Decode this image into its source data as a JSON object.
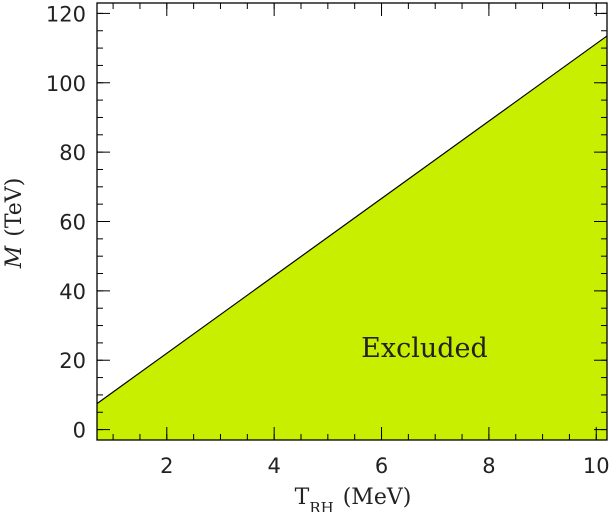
{
  "chart_data": {
    "type": "area",
    "title": "",
    "xlabel": {
      "main": "T",
      "subscript": "RH",
      "unit": "(MeV)"
    },
    "ylabel": {
      "main": "M",
      "unit": "(TeV)"
    },
    "xlim": [
      0.7,
      10.2
    ],
    "ylim": [
      -3,
      123
    ],
    "x_ticks": [
      2,
      4,
      6,
      8,
      10
    ],
    "y_ticks": [
      0,
      20,
      40,
      60,
      80,
      100,
      120
    ],
    "x_tick_labels": [
      "2",
      "4",
      "6",
      "8",
      "10"
    ],
    "y_tick_labels": [
      "0",
      "20",
      "40",
      "60",
      "80",
      "100",
      "120"
    ],
    "x_minor_step": 0.5,
    "y_minor_step": 5,
    "grid": false,
    "series": [
      {
        "x": [
          0.7,
          10.2
        ],
        "y": [
          7.5,
          113.5
        ]
      }
    ],
    "fill_color": "#c8ef00",
    "line_color": "#000000",
    "annotations": [
      {
        "text": "Excluded",
        "x": 6.8,
        "y": 21
      }
    ]
  }
}
